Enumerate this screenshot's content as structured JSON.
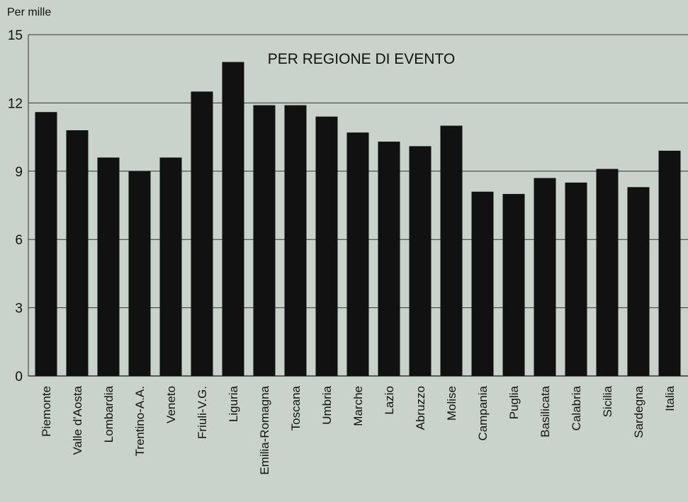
{
  "chart_data": {
    "type": "bar",
    "title": "PER REGIONE DI EVENTO",
    "ylabel": "Per mille",
    "xlabel": "",
    "ylim": [
      0,
      15
    ],
    "yticks": [
      0,
      3,
      6,
      9,
      12,
      15
    ],
    "grid": true,
    "categories": [
      "Piemonte",
      "Valle d'Aosta",
      "Lombardia",
      "Trentino-A.A.",
      "Veneto",
      "Friuli-V.G.",
      "Liguria",
      "Emilia-Romagna",
      "Toscana",
      "Umbria",
      "Marche",
      "Lazio",
      "Abruzzo",
      "Molise",
      "Campania",
      "Puglia",
      "Basilicata",
      "Calabria",
      "Sicilia",
      "Sardegna",
      "Italia"
    ],
    "values": [
      11.6,
      10.8,
      9.6,
      9.0,
      9.6,
      12.5,
      13.8,
      11.9,
      11.9,
      11.4,
      10.7,
      10.3,
      10.1,
      11.0,
      8.1,
      8.0,
      8.7,
      8.5,
      9.1,
      8.3,
      9.9
    ],
    "colors": {
      "bar": "#111111",
      "grid": "#333333",
      "background": "#c9d2cb"
    }
  }
}
